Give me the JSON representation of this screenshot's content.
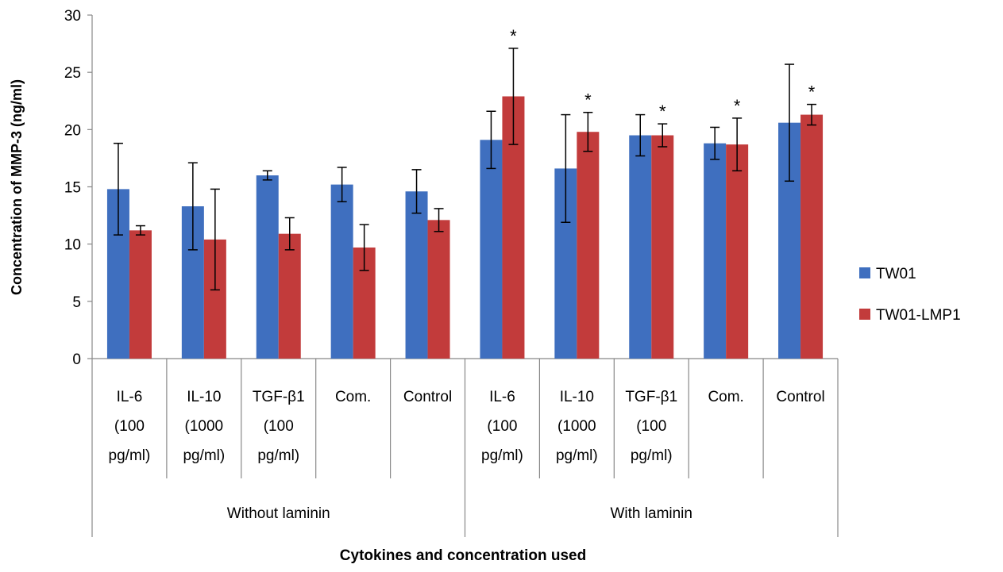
{
  "chart_data": {
    "type": "bar",
    "title": "",
    "xlabel": "Cytokines and concentration used",
    "ylabel": "Concentration of MMP-3  (ng/ml)",
    "ylim": [
      0,
      30
    ],
    "yticks": [
      0,
      5,
      10,
      15,
      20,
      25,
      30
    ],
    "grid": false,
    "legend_position": "right",
    "groups": [
      {
        "label": "Without laminin",
        "start": 0,
        "count": 5
      },
      {
        "label": "With laminin",
        "start": 5,
        "count": 5
      }
    ],
    "categories": [
      [
        "IL-6",
        "(100",
        "pg/ml)"
      ],
      [
        "IL-10",
        "(1000",
        "pg/ml)"
      ],
      [
        "TGF-β1",
        "(100",
        "pg/ml)"
      ],
      [
        "Com."
      ],
      [
        "Control"
      ],
      [
        "IL-6",
        "(100",
        "pg/ml)"
      ],
      [
        "IL-10",
        "(1000",
        "pg/ml)"
      ],
      [
        "TGF-β1",
        "(100",
        "pg/ml)"
      ],
      [
        "Com."
      ],
      [
        "Control"
      ]
    ],
    "series": [
      {
        "name": "TW01",
        "color": "#3f6fbf",
        "values": [
          14.8,
          13.3,
          16.0,
          15.2,
          14.6,
          19.1,
          16.6,
          19.5,
          18.8,
          20.6
        ],
        "errors": [
          4.0,
          3.8,
          0.4,
          1.5,
          1.9,
          2.5,
          4.7,
          1.8,
          1.4,
          5.1
        ]
      },
      {
        "name": "TW01-LMP1",
        "color": "#c23b3b",
        "values": [
          11.2,
          10.4,
          10.9,
          9.7,
          12.1,
          22.9,
          19.8,
          19.5,
          18.7,
          21.3
        ],
        "errors": [
          0.4,
          4.4,
          1.4,
          2.0,
          1.0,
          4.2,
          1.7,
          1.0,
          2.3,
          0.9
        ]
      }
    ],
    "annotations": [
      "",
      "",
      "",
      "",
      "",
      "*",
      "*",
      "*",
      "*",
      "*"
    ]
  }
}
